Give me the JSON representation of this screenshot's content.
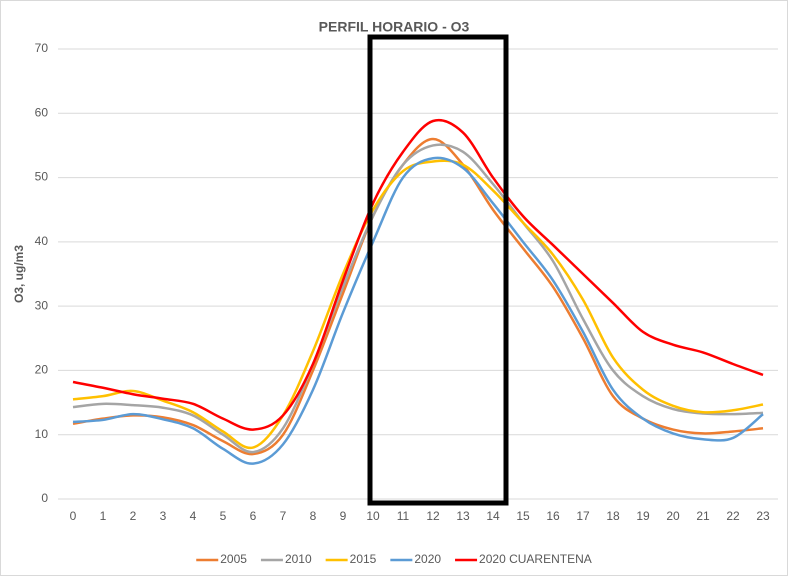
{
  "chart_data": {
    "type": "line",
    "title": "PERFIL HORARIO - O3",
    "y_label": "O3, ug/m3",
    "categories": [
      0,
      1,
      2,
      3,
      4,
      5,
      6,
      7,
      8,
      9,
      10,
      11,
      12,
      13,
      14,
      15,
      16,
      17,
      18,
      19,
      20,
      21,
      22,
      23
    ],
    "series": [
      {
        "name": "2005",
        "color": "#ed7d31",
        "values": [
          11.7,
          12.5,
          13,
          12.7,
          11.5,
          9,
          7,
          10,
          20,
          32,
          44,
          52,
          56,
          52,
          45,
          39,
          33,
          25,
          16,
          12.5,
          10.8,
          10.2,
          10.5,
          11
        ]
      },
      {
        "name": "2010",
        "color": "#a5a5a5",
        "values": [
          14.3,
          14.8,
          14.6,
          14.2,
          13,
          10,
          7.3,
          11,
          21,
          33,
          44,
          52,
          55,
          54,
          49,
          43,
          37,
          28,
          20,
          16,
          14,
          13.3,
          13.2,
          13.4
        ]
      },
      {
        "name": "2015",
        "color": "#ffc000",
        "values": [
          15.5,
          16,
          16.8,
          15.3,
          13.5,
          10.5,
          8,
          13,
          23,
          35,
          45,
          51,
          52.5,
          52,
          48,
          43,
          38,
          31,
          22,
          17,
          14.5,
          13.5,
          13.8,
          14.7
        ]
      },
      {
        "name": "2020",
        "color": "#5b9bd5",
        "values": [
          12,
          12.3,
          13.2,
          12.4,
          11,
          7.8,
          5.5,
          8.5,
          17,
          29,
          40,
          50,
          53,
          51.5,
          46,
          40,
          34,
          26,
          17,
          12.5,
          10.2,
          9.3,
          9.5,
          13.2
        ]
      },
      {
        "name": "2020 CUARENTENA",
        "color": "#ff0000",
        "values": [
          18.2,
          17.3,
          16.3,
          15.6,
          14.8,
          12.5,
          10.8,
          13,
          21,
          34,
          46,
          54,
          58.8,
          57,
          50,
          44,
          39.5,
          35,
          30.5,
          26,
          24,
          22.8,
          21,
          19.3
        ]
      }
    ],
    "ylim": [
      0,
      70
    ],
    "yticks": [
      0,
      10,
      20,
      30,
      40,
      50,
      60,
      70
    ],
    "grid": true,
    "legend": "bottom"
  }
}
